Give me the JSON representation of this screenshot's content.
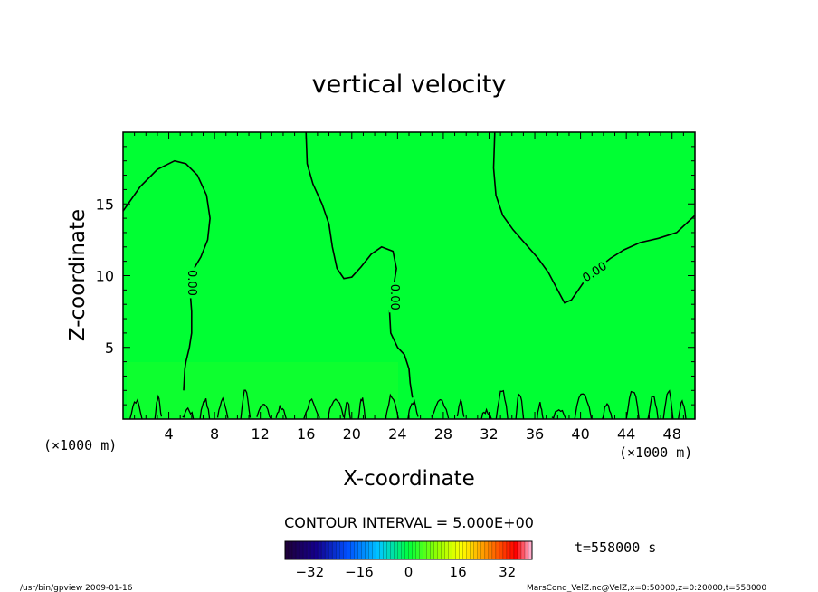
{
  "chart_data": {
    "type": "contour",
    "title": "vertical velocity",
    "xlabel": "X-coordinate",
    "ylabel": "Z-coordinate",
    "x_unit": "(×1000 m)",
    "z_unit": "(×1000 m)",
    "xlim": [
      0,
      50
    ],
    "ylim": [
      0,
      20
    ],
    "x_ticks": [
      4,
      8,
      12,
      16,
      20,
      24,
      28,
      32,
      36,
      40,
      44,
      48
    ],
    "y_ticks": [
      5,
      10,
      15
    ],
    "contour_interval_text": "CONTOUR INTERVAL = 5.000E+00",
    "contour_labels": [
      "0.00",
      "0.00",
      "0.00"
    ],
    "colorbar": {
      "min": -40,
      "max": 40,
      "ticks": [
        -32,
        -16,
        0,
        16,
        32
      ]
    },
    "time_text": "t=558000 s",
    "field_color": "#00ff33",
    "zero_contours": [
      {
        "x": [
          0,
          1.5,
          3,
          4.5,
          5.5,
          6.5,
          7.3,
          7.6,
          7.4,
          6.8,
          6.2,
          5.9,
          5.9,
          6.0,
          6.0,
          5.8,
          5.5,
          5.4,
          5.3
        ],
        "z": [
          14.5,
          16.2,
          17.4,
          18.0,
          17.8,
          17.0,
          15.6,
          14.0,
          12.5,
          11.3,
          10.5,
          9.5,
          8.5,
          7.5,
          6.0,
          5.0,
          4.0,
          3.5,
          2.0
        ]
      },
      {
        "x": [
          16,
          16.1,
          16.6,
          17.4,
          18.0,
          18.3,
          18.7,
          19.3,
          20.0,
          20.8,
          21.7,
          22.6,
          23.6,
          23.9,
          23.6,
          23.3,
          23.4,
          24.0,
          24.6,
          25.0,
          25.1,
          25.3
        ],
        "z": [
          20.0,
          17.8,
          16.4,
          15.0,
          13.6,
          12.0,
          10.5,
          9.8,
          9.9,
          10.6,
          11.5,
          12.0,
          11.7,
          10.5,
          9.0,
          7.5,
          6.0,
          5.0,
          4.5,
          3.5,
          2.5,
          1.5
        ]
      },
      {
        "x": [
          32.5,
          32.4,
          32.6,
          33.2,
          34.1,
          35.2,
          36.3,
          37.2,
          38.0,
          38.6,
          39.2,
          39.8,
          40.5,
          41.5,
          42.6,
          43.8,
          45.2,
          46.8,
          48.4,
          50.0
        ],
        "z": [
          20.0,
          17.5,
          15.6,
          14.2,
          13.2,
          12.2,
          11.2,
          10.2,
          9.0,
          8.1,
          8.3,
          9.0,
          9.8,
          10.5,
          11.2,
          11.8,
          12.3,
          12.6,
          13.0,
          14.2
        ]
      }
    ],
    "source_text": "/usr/bin/gpview   2009-01-16",
    "file_text": "MarsCond_VelZ.nc@VelZ,x=0:50000,z=0:20000,t=558000"
  }
}
